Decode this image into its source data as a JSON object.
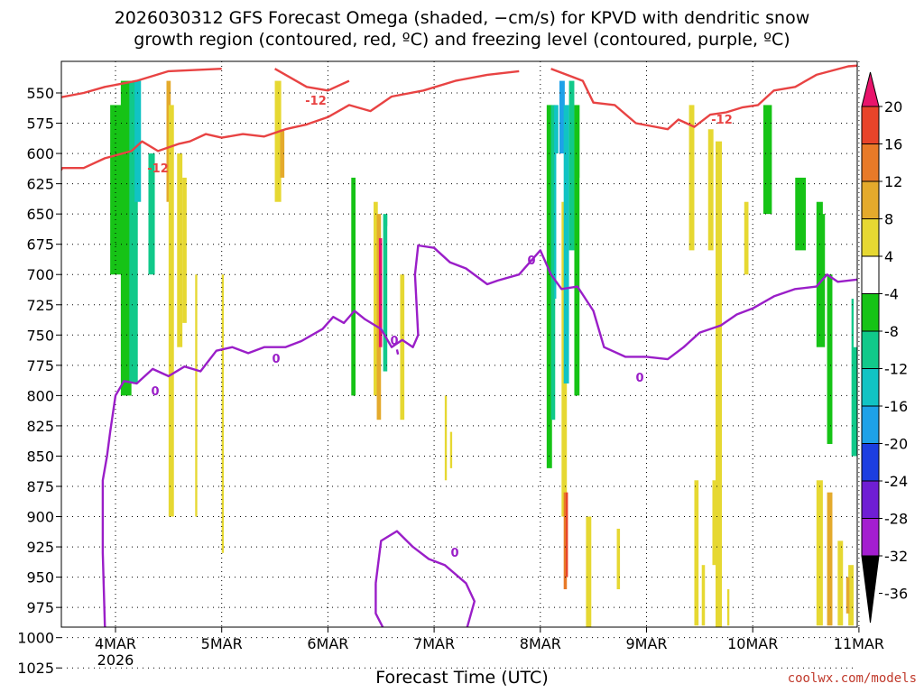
{
  "title_line1": "2026030312 GFS Forecast Omega (shaded, −cm/s) for KPVD with dendritic snow",
  "title_line2": "growth region (contoured, red, ºC) and freezing level (contoured, purple, ºC)",
  "credit": "coolwx.com/models",
  "chart_data": {
    "type": "heatmap",
    "xlabel": "Forecast Time (UTC)",
    "x_ticks": [
      "4MAR",
      "5MAR",
      "6MAR",
      "7MAR",
      "8MAR",
      "9MAR",
      "10MAR",
      "11MAR"
    ],
    "x_tick_sub": "2026",
    "y_ticks": [
      550,
      575,
      600,
      625,
      650,
      675,
      700,
      725,
      750,
      775,
      800,
      825,
      850,
      875,
      900,
      925,
      950,
      975,
      1000,
      1025
    ],
    "y_axis": "pressure level (hPa), inverted",
    "colorbar": {
      "labels": [
        "20",
        "16",
        "12",
        "8",
        "4",
        "-4",
        "-8",
        "-12",
        "-16",
        "-20",
        "-24",
        "-28",
        "-32",
        "-36"
      ],
      "colors": [
        "#e8146b",
        "#e8442a",
        "#e87a28",
        "#e4aa2c",
        "#e6d832",
        "#ffffff",
        "#16c316",
        "#11c98a",
        "#11c3c4",
        "#1ea1e8",
        "#1c3ee0",
        "#6f1ed4",
        "#a41ed0",
        "#a7a7a7"
      ]
    },
    "contours": [
      {
        "label": "-12",
        "color": "#e84343",
        "description": "dendritic snow growth region"
      },
      {
        "label": "0",
        "color": "#9a1ec8",
        "description": "freezing level"
      }
    ],
    "terrain_color": "#9a4d26"
  }
}
